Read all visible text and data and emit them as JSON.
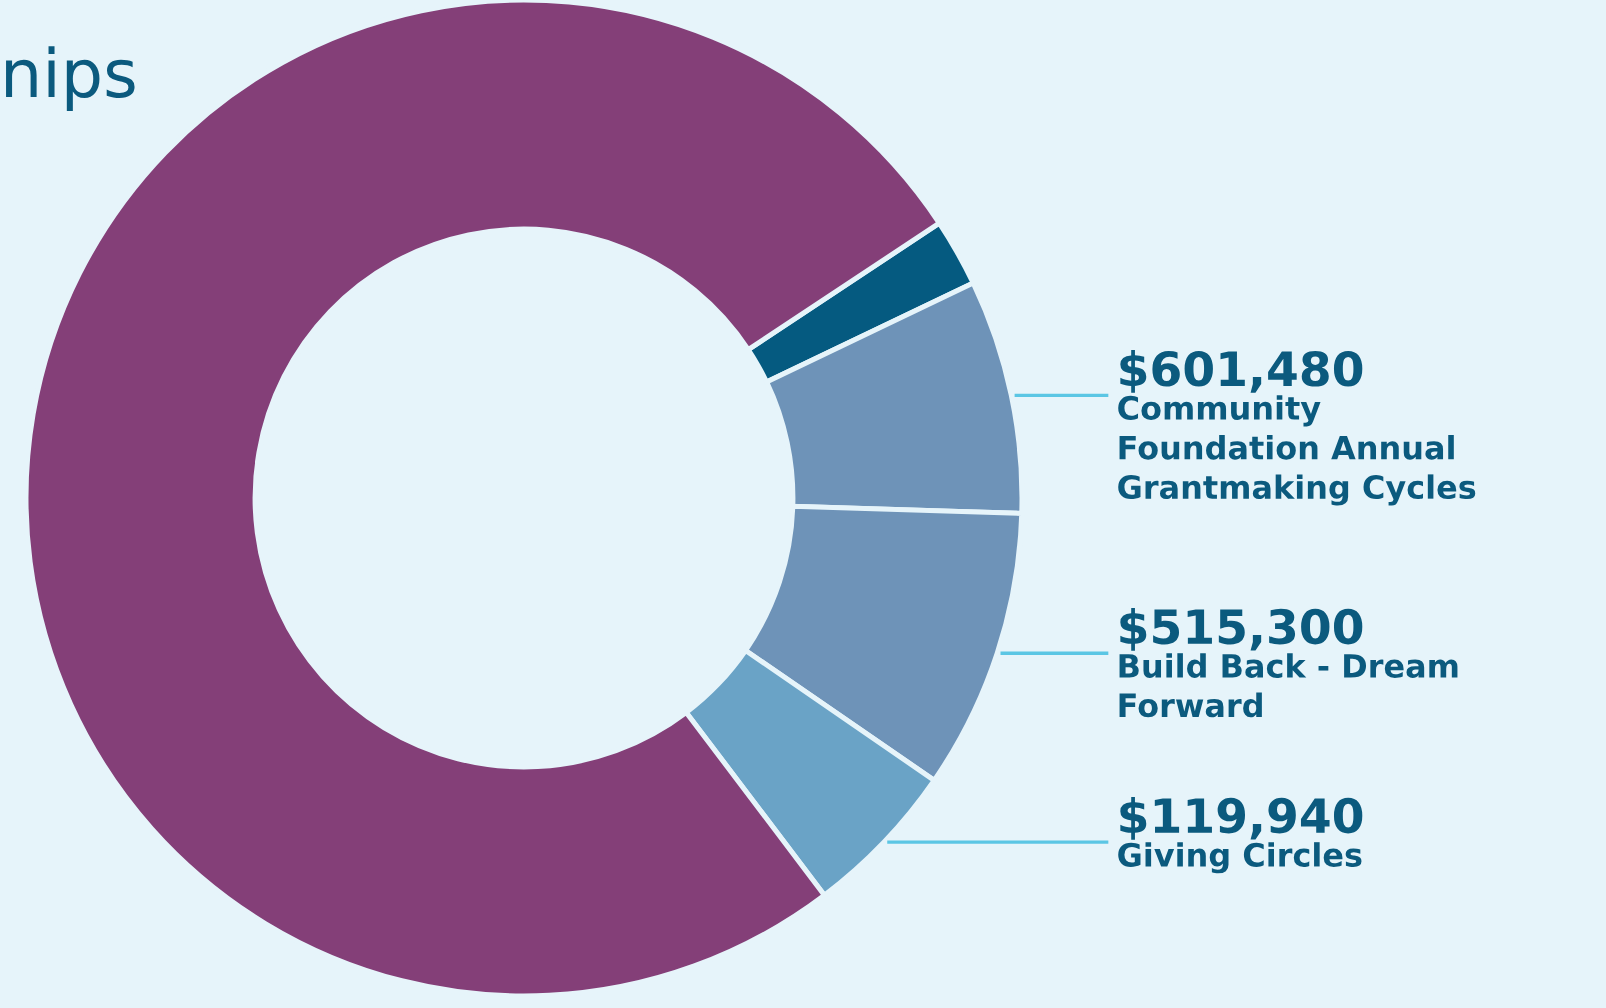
{
  "chart_data": {
    "type": "donut",
    "title": "nips",
    "categories": [
      null,
      "Community\nFoundation Annual\nGrantmaking Cycles",
      "Build Back - Dream\nForward",
      "Giving Circles",
      null
    ],
    "values": [
      2.2,
      7.6,
      9.1,
      5.1,
      76.0
    ],
    "colors": [
      "#055a80",
      "#6e93b8",
      "#6e93b8",
      "#6aa3c6",
      "#843f78"
    ],
    "annotations": [
      {
        "text": "$601,480",
        "x": "Community\nFoundation Annual\nGrantmaking Cycles"
      },
      {
        "text": "$515,300",
        "x": "Build Back - Dream\nForward"
      },
      {
        "text": "$119,940",
        "x": "Giving Circles"
      }
    ],
    "legend": false
  }
}
